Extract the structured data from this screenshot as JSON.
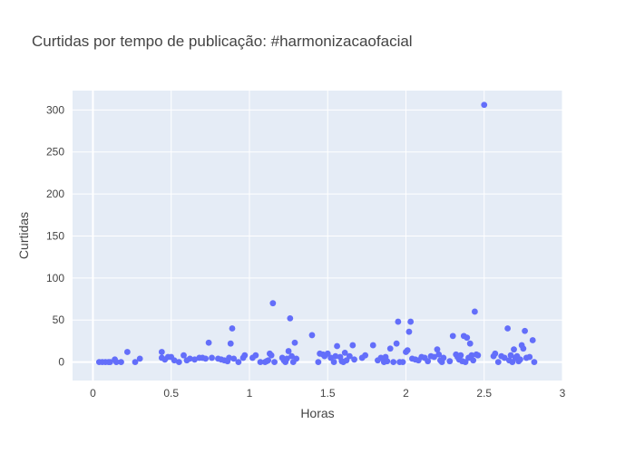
{
  "chart_data": {
    "type": "scatter",
    "title": "Curtidas por tempo de publicação: #harmonizacaofacial",
    "xlabel": "Horas",
    "ylabel": "Curtidas",
    "xlim": [
      -0.13,
      3.0
    ],
    "ylim": [
      -22,
      323
    ],
    "xticks": [
      0,
      0.5,
      1,
      1.5,
      2,
      2.5,
      3
    ],
    "xtick_labels": [
      "0",
      "0.5",
      "1",
      "1.5",
      "2",
      "2.5",
      "3"
    ],
    "yticks": [
      0,
      50,
      100,
      150,
      200,
      250,
      300
    ],
    "ytick_labels": [
      "0",
      "50",
      "100",
      "150",
      "200",
      "250",
      "300"
    ],
    "grid": true,
    "colors": {
      "marker": "#636efa",
      "plot_bg": "#e5ecf6",
      "grid": "#ffffff",
      "text": "#444444"
    },
    "series": [
      {
        "points": [
          [
            0.04,
            0
          ],
          [
            0.06,
            0
          ],
          [
            0.08,
            0
          ],
          [
            0.1,
            0
          ],
          [
            0.11,
            0
          ],
          [
            0.14,
            3
          ],
          [
            0.15,
            0
          ],
          [
            0.18,
            0
          ],
          [
            0.22,
            12
          ],
          [
            0.27,
            0
          ],
          [
            0.3,
            4
          ],
          [
            0.44,
            12
          ],
          [
            0.44,
            5
          ],
          [
            0.46,
            3
          ],
          [
            0.48,
            6
          ],
          [
            0.5,
            6
          ],
          [
            0.52,
            2
          ],
          [
            0.55,
            0
          ],
          [
            0.58,
            8
          ],
          [
            0.6,
            2
          ],
          [
            0.62,
            4
          ],
          [
            0.65,
            3
          ],
          [
            0.68,
            5
          ],
          [
            0.7,
            5
          ],
          [
            0.72,
            4
          ],
          [
            0.74,
            23
          ],
          [
            0.76,
            5
          ],
          [
            0.8,
            4
          ],
          [
            0.82,
            3
          ],
          [
            0.84,
            2
          ],
          [
            0.86,
            1
          ],
          [
            0.87,
            5
          ],
          [
            0.88,
            22
          ],
          [
            0.89,
            40
          ],
          [
            0.9,
            4
          ],
          [
            0.93,
            0
          ],
          [
            0.96,
            5
          ],
          [
            0.97,
            8
          ],
          [
            1.02,
            5
          ],
          [
            1.04,
            8
          ],
          [
            1.07,
            0
          ],
          [
            1.1,
            0
          ],
          [
            1.11,
            1
          ],
          [
            1.12,
            2
          ],
          [
            1.13,
            10
          ],
          [
            1.14,
            8
          ],
          [
            1.15,
            70
          ],
          [
            1.16,
            0
          ],
          [
            1.21,
            5
          ],
          [
            1.22,
            2
          ],
          [
            1.23,
            0
          ],
          [
            1.24,
            4
          ],
          [
            1.25,
            13
          ],
          [
            1.26,
            52
          ],
          [
            1.27,
            7
          ],
          [
            1.28,
            0
          ],
          [
            1.29,
            23
          ],
          [
            1.3,
            4
          ],
          [
            1.4,
            32
          ],
          [
            1.44,
            0
          ],
          [
            1.45,
            10
          ],
          [
            1.47,
            9
          ],
          [
            1.48,
            7
          ],
          [
            1.5,
            10
          ],
          [
            1.52,
            5
          ],
          [
            1.54,
            0
          ],
          [
            1.55,
            7
          ],
          [
            1.56,
            19
          ],
          [
            1.58,
            6
          ],
          [
            1.59,
            1
          ],
          [
            1.6,
            0
          ],
          [
            1.61,
            11
          ],
          [
            1.62,
            2
          ],
          [
            1.64,
            7
          ],
          [
            1.66,
            20
          ],
          [
            1.67,
            3
          ],
          [
            1.72,
            5
          ],
          [
            1.74,
            8
          ],
          [
            1.79,
            20
          ],
          [
            1.82,
            2
          ],
          [
            1.84,
            5
          ],
          [
            1.86,
            0
          ],
          [
            1.87,
            6
          ],
          [
            1.88,
            1
          ],
          [
            1.9,
            16
          ],
          [
            1.92,
            0
          ],
          [
            1.94,
            22
          ],
          [
            1.95,
            48
          ],
          [
            1.96,
            0
          ],
          [
            1.98,
            0
          ],
          [
            2.0,
            12
          ],
          [
            2.01,
            14
          ],
          [
            2.02,
            36
          ],
          [
            2.03,
            48
          ],
          [
            2.04,
            4
          ],
          [
            2.06,
            3
          ],
          [
            2.08,
            2
          ],
          [
            2.1,
            6
          ],
          [
            2.12,
            5
          ],
          [
            2.14,
            1
          ],
          [
            2.16,
            7
          ],
          [
            2.18,
            6
          ],
          [
            2.2,
            15
          ],
          [
            2.21,
            9
          ],
          [
            2.22,
            2
          ],
          [
            2.23,
            0
          ],
          [
            2.24,
            5
          ],
          [
            2.28,
            1
          ],
          [
            2.3,
            31
          ],
          [
            2.32,
            9
          ],
          [
            2.33,
            6
          ],
          [
            2.34,
            3
          ],
          [
            2.35,
            8
          ],
          [
            2.36,
            1
          ],
          [
            2.37,
            31
          ],
          [
            2.38,
            0
          ],
          [
            2.39,
            29
          ],
          [
            2.4,
            5
          ],
          [
            2.41,
            22
          ],
          [
            2.42,
            8
          ],
          [
            2.43,
            2
          ],
          [
            2.44,
            60
          ],
          [
            2.45,
            9
          ],
          [
            2.46,
            8
          ],
          [
            2.5,
            306
          ],
          [
            2.56,
            7
          ],
          [
            2.57,
            10
          ],
          [
            2.59,
            0
          ],
          [
            2.61,
            7
          ],
          [
            2.63,
            5
          ],
          [
            2.65,
            40
          ],
          [
            2.66,
            2
          ],
          [
            2.67,
            8
          ],
          [
            2.68,
            0
          ],
          [
            2.69,
            15
          ],
          [
            2.7,
            5
          ],
          [
            2.71,
            7
          ],
          [
            2.72,
            1
          ],
          [
            2.73,
            3
          ],
          [
            2.74,
            20
          ],
          [
            2.75,
            16
          ],
          [
            2.76,
            37
          ],
          [
            2.77,
            5
          ],
          [
            2.79,
            6
          ],
          [
            2.81,
            26
          ],
          [
            2.82,
            0
          ]
        ]
      }
    ]
  }
}
